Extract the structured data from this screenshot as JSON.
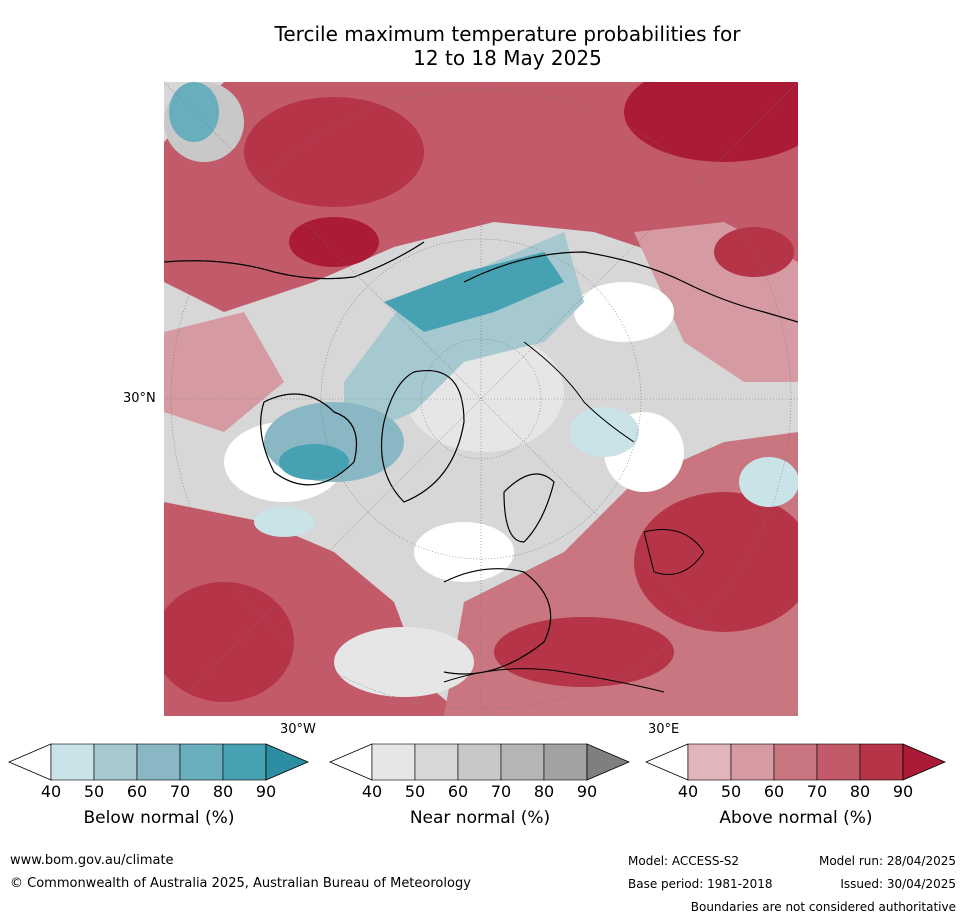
{
  "title_line1": "Tercile maximum temperature probabilities for",
  "title_line2": "12 to 18 May 2025",
  "axis_labels": {
    "lat_30n": "30°N",
    "lon_30w": "30°W",
    "lon_30e": "30°E"
  },
  "colorbars": [
    {
      "label": "Below normal (%)",
      "ticks": [
        "40",
        "50",
        "60",
        "70",
        "80",
        "90"
      ],
      "colors": [
        "#ffffff",
        "#c9e3e9",
        "#a6c8cf",
        "#8ab7c4",
        "#68aebc",
        "#46a2b2",
        "#2c8ea3"
      ]
    },
    {
      "label": "Near normal (%)",
      "ticks": [
        "40",
        "50",
        "60",
        "70",
        "80",
        "90"
      ],
      "colors": [
        "#ffffff",
        "#e6e6e6",
        "#d7d7d7",
        "#c8c8c8",
        "#b5b5b5",
        "#a2a2a2",
        "#7f7f7f"
      ]
    },
    {
      "label": "Above normal (%)",
      "ticks": [
        "40",
        "50",
        "60",
        "70",
        "80",
        "90"
      ],
      "colors": [
        "#ffffff",
        "#e2b5bb",
        "#d59aa2",
        "#c97680",
        "#c35a69",
        "#b53448",
        "#ab1b38"
      ]
    }
  ],
  "footer": {
    "website": "www.bom.gov.au/climate",
    "copyright": "© Commonwealth of Australia 2025, Australian Bureau of Meteorology",
    "model": "Model: ACCESS-S2",
    "base_period": "Base period: 1981-2018",
    "model_run": "Model run: 28/04/2025",
    "issued": "Issued: 30/04/2025",
    "disclaimer": "Boundaries are not considered authoritative"
  }
}
